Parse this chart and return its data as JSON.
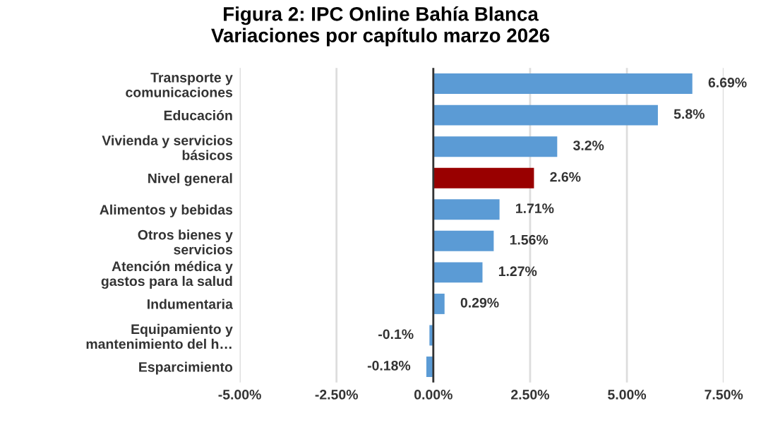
{
  "chart_data": {
    "type": "bar",
    "orientation": "horizontal",
    "title": "Figura 2: IPC Online Bahía Blanca\nVariaciones por capítulo marzo 2026",
    "categories": [
      "Transporte y\ncomunicaciones",
      "Educación",
      "Vivienda y servicios\nbásicos",
      "Nivel general",
      "Alimentos y bebidas",
      "Otros bienes y\nservicios",
      "Atención médica y\ngastos para la salud",
      "Indumentaria",
      "Equipamiento y\nmantenimiento del h…",
      "Esparcimiento"
    ],
    "values": [
      6.69,
      5.8,
      3.2,
      2.6,
      1.71,
      1.56,
      1.27,
      0.29,
      -0.1,
      -0.18
    ],
    "colors": [
      "#5b9bd5",
      "#5b9bd5",
      "#5b9bd5",
      "#990000",
      "#5b9bd5",
      "#5b9bd5",
      "#5b9bd5",
      "#5b9bd5",
      "#5b9bd5",
      "#5b9bd5"
    ],
    "value_labels": [
      "6.69%",
      "5.8%",
      "3.2%",
      "2.6%",
      "1.71%",
      "1.56%",
      "1.27%",
      "0.29%",
      "-0.1%",
      "-0.18%"
    ],
    "xlim": [
      -5,
      7.5
    ],
    "xticks": [
      {
        "value": -5,
        "label": "-5.00%"
      },
      {
        "value": -2.5,
        "label": "-2.50%"
      },
      {
        "value": 0,
        "label": "0.00%"
      },
      {
        "value": 2.5,
        "label": "2.50%"
      },
      {
        "value": 5,
        "label": "5.00%"
      },
      {
        "value": 7.5,
        "label": "7.50%"
      }
    ],
    "grid": "x",
    "legend": false
  }
}
